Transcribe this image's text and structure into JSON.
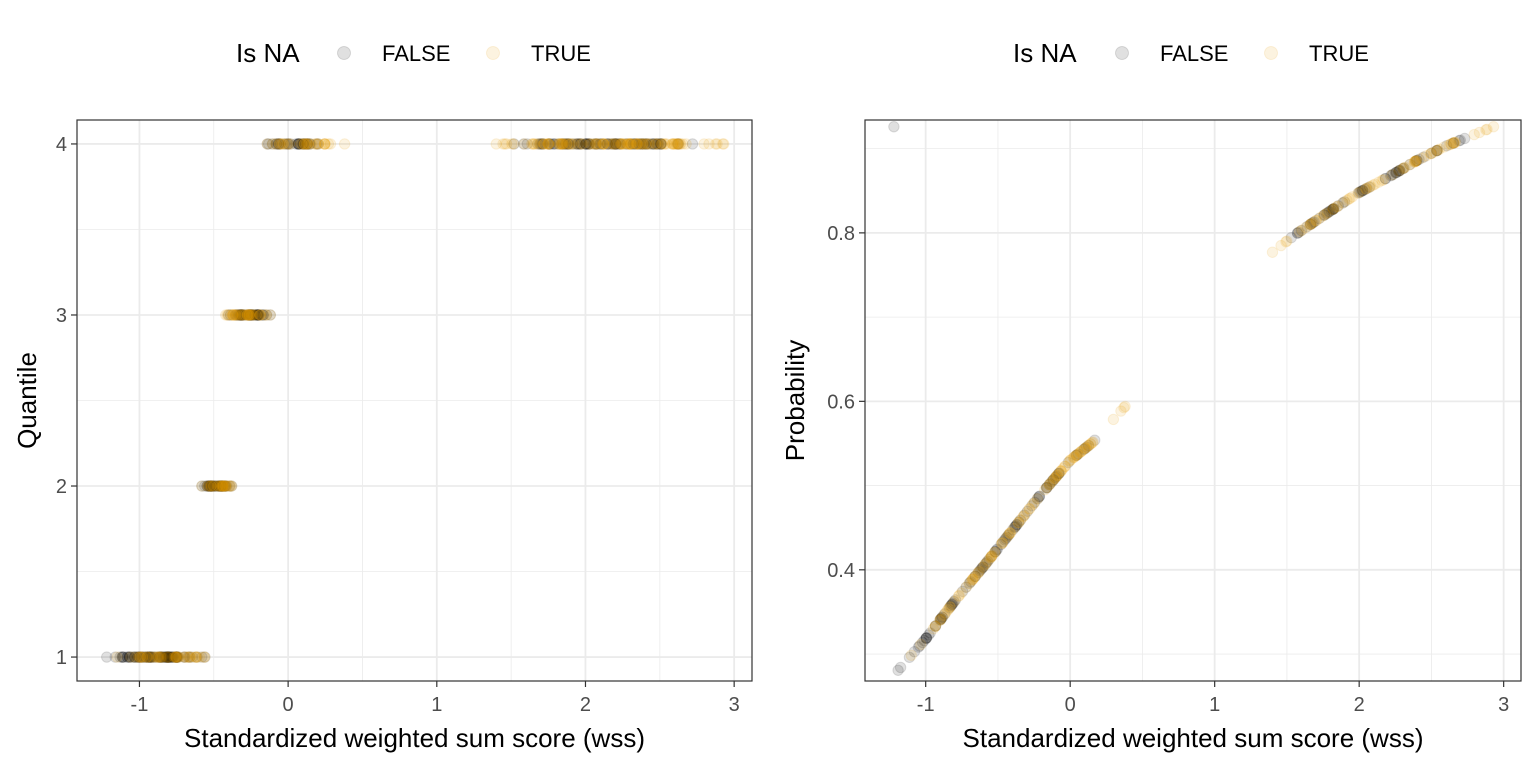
{
  "colors": {
    "false_point": "#000000",
    "true_point": "#E69F00",
    "grid": "#EBEBEB",
    "panel_border": "#333333",
    "tick_text": "#4D4D4D",
    "axis_title": "#000000"
  },
  "chart_data": [
    {
      "type": "scatter",
      "title": "",
      "xlabel": "Standardized weighted sum score (wss)",
      "ylabel": "Quantile",
      "xlim": [
        -1.42,
        3.12
      ],
      "ylim": [
        0.86,
        4.14
      ],
      "xticks": [
        -1,
        0,
        1,
        2,
        3
      ],
      "xtick_labels": [
        "-1",
        "0",
        "1",
        "2",
        "3"
      ],
      "yticks": [
        1,
        2,
        3,
        4
      ],
      "ytick_labels": [
        "1",
        "2",
        "3",
        "4"
      ],
      "grid": true,
      "legend": {
        "title": "Is NA",
        "position": "top",
        "entries": [
          "FALSE",
          "TRUE"
        ]
      },
      "point_alpha": 0.12,
      "series": [
        {
          "name": "FALSE",
          "groups": [
            {
              "y": 1,
              "x_range": [
                -1.22,
                -0.56
              ],
              "n": 80
            },
            {
              "y": 2,
              "x_range": [
                -0.58,
                -0.38
              ],
              "n": 35
            },
            {
              "y": 3,
              "x_range": [
                -0.4,
                -0.12
              ],
              "n": 40
            },
            {
              "y": 4,
              "x_range": [
                -0.14,
                0.2
              ],
              "n": 30
            },
            {
              "y": 4,
              "x_range": [
                1.52,
                2.72
              ],
              "n": 90
            }
          ]
        },
        {
          "name": "TRUE",
          "groups": [
            {
              "y": 1,
              "x_range": [
                -1.15,
                -0.56
              ],
              "n": 45
            },
            {
              "y": 2,
              "x_range": [
                -0.58,
                -0.38
              ],
              "n": 25
            },
            {
              "y": 3,
              "x_range": [
                -0.42,
                -0.12
              ],
              "n": 35
            },
            {
              "y": 4,
              "x_range": [
                -0.14,
                0.38
              ],
              "n": 30
            },
            {
              "y": 4,
              "x_range": [
                1.4,
                2.93
              ],
              "n": 110
            }
          ]
        }
      ]
    },
    {
      "type": "scatter",
      "title": "",
      "xlabel": "Standardized weighted sum score (wss)",
      "ylabel": "Probability",
      "xlim": [
        -1.42,
        3.12
      ],
      "ylim": [
        0.268,
        0.934
      ],
      "xticks": [
        -1,
        0,
        1,
        2,
        3
      ],
      "xtick_labels": [
        "-1",
        "0",
        "1",
        "2",
        "3"
      ],
      "yticks": [
        0.4,
        0.6,
        0.8
      ],
      "ytick_labels": [
        "0.4",
        "0.6",
        "0.8"
      ],
      "grid": true,
      "legend": {
        "title": "Is NA",
        "position": "top",
        "entries": [
          "FALSE",
          "TRUE"
        ]
      },
      "point_alpha": 0.12,
      "curve": [
        [
          -1.21,
          0.277
        ],
        [
          -1.0,
          0.318
        ],
        [
          -0.8,
          0.363
        ],
        [
          -0.6,
          0.404
        ],
        [
          -0.4,
          0.447
        ],
        [
          -0.2,
          0.49
        ],
        [
          0.0,
          0.53
        ],
        [
          0.16,
          0.552
        ],
        [
          0.38,
          0.594
        ],
        [
          1.4,
          0.777
        ],
        [
          1.55,
          0.797
        ],
        [
          1.8,
          0.826
        ],
        [
          2.0,
          0.848
        ],
        [
          2.2,
          0.866
        ],
        [
          2.4,
          0.886
        ],
        [
          2.6,
          0.903
        ],
        [
          2.93,
          0.926
        ]
      ],
      "series": [
        {
          "name": "FALSE",
          "x_ranges": [
            [
              -1.22,
              0.17
            ],
            [
              1.53,
              2.73
            ]
          ],
          "n": 160
        },
        {
          "name": "TRUE",
          "x_ranges": [
            [
              -1.1,
              0.38
            ],
            [
              1.4,
              2.93
            ]
          ],
          "n": 170
        }
      ]
    }
  ]
}
